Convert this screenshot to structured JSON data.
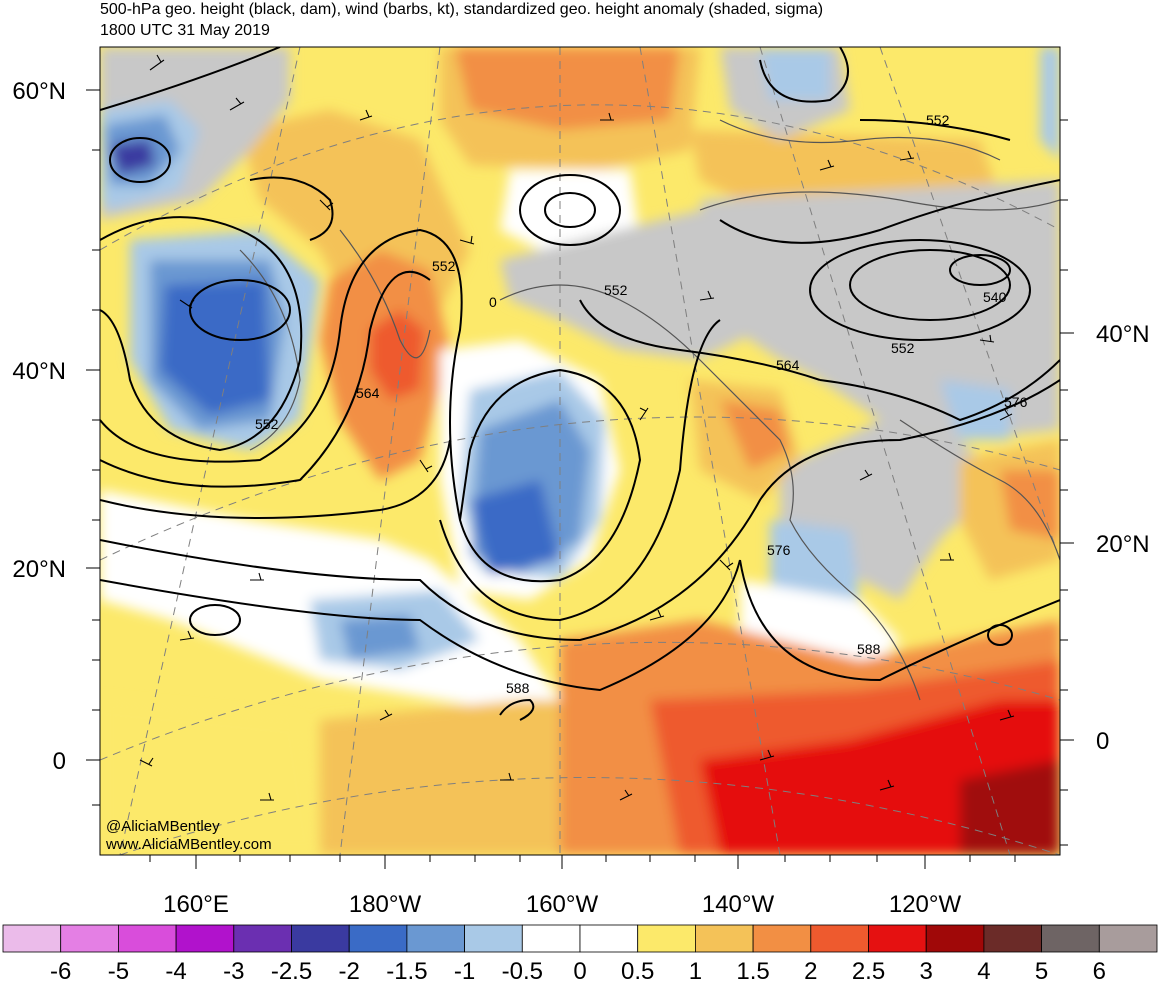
{
  "title": {
    "line1": "500-hPa geo. height (black, dam), wind (barbs, kt), standardized geo. height anomaly (shaded, sigma)",
    "line2": "1800 UTC 31 May 2019"
  },
  "credits": {
    "handle": "@AliciaMBentley",
    "website": "www.AliciaMBentley.com"
  },
  "map": {
    "lat_labels_left": [
      "60°N",
      "40°N",
      "20°N",
      "0"
    ],
    "lat_labels_right": [
      "40°N",
      "20°N",
      "0"
    ],
    "lon_labels_bottom": [
      "160°E",
      "180°W",
      "160°W",
      "140°W",
      "120°W"
    ],
    "contour_labels": [
      "552",
      "552",
      "552",
      "552",
      "540",
      "564",
      "564",
      "552",
      "0",
      "576",
      "576",
      "588",
      "588"
    ],
    "colors": {
      "land": "#c8c8c8",
      "contour": "#000000",
      "grid": "#7f7f7f"
    }
  },
  "colorbar": {
    "labels": [
      "-6",
      "-5",
      "-4",
      "-3",
      "-2.5",
      "-2",
      "-1.5",
      "-1",
      "-0.5",
      "0",
      "0.5",
      "1",
      "1.5",
      "2",
      "2.5",
      "3",
      "4",
      "5",
      "6"
    ],
    "colors": [
      "#ebbbea",
      "#e47fe4",
      "#d94ddb",
      "#b112cc",
      "#6b2fb1",
      "#3a3aa0",
      "#3a6bc6",
      "#6a98d2",
      "#a9c9e7",
      "#ffffff",
      "#ffffff",
      "#fce96a",
      "#f4c258",
      "#f28f44",
      "#ee5a2e",
      "#e51111",
      "#a00808",
      "#6b2b28",
      "#6e6464",
      "#a89c9c"
    ]
  }
}
